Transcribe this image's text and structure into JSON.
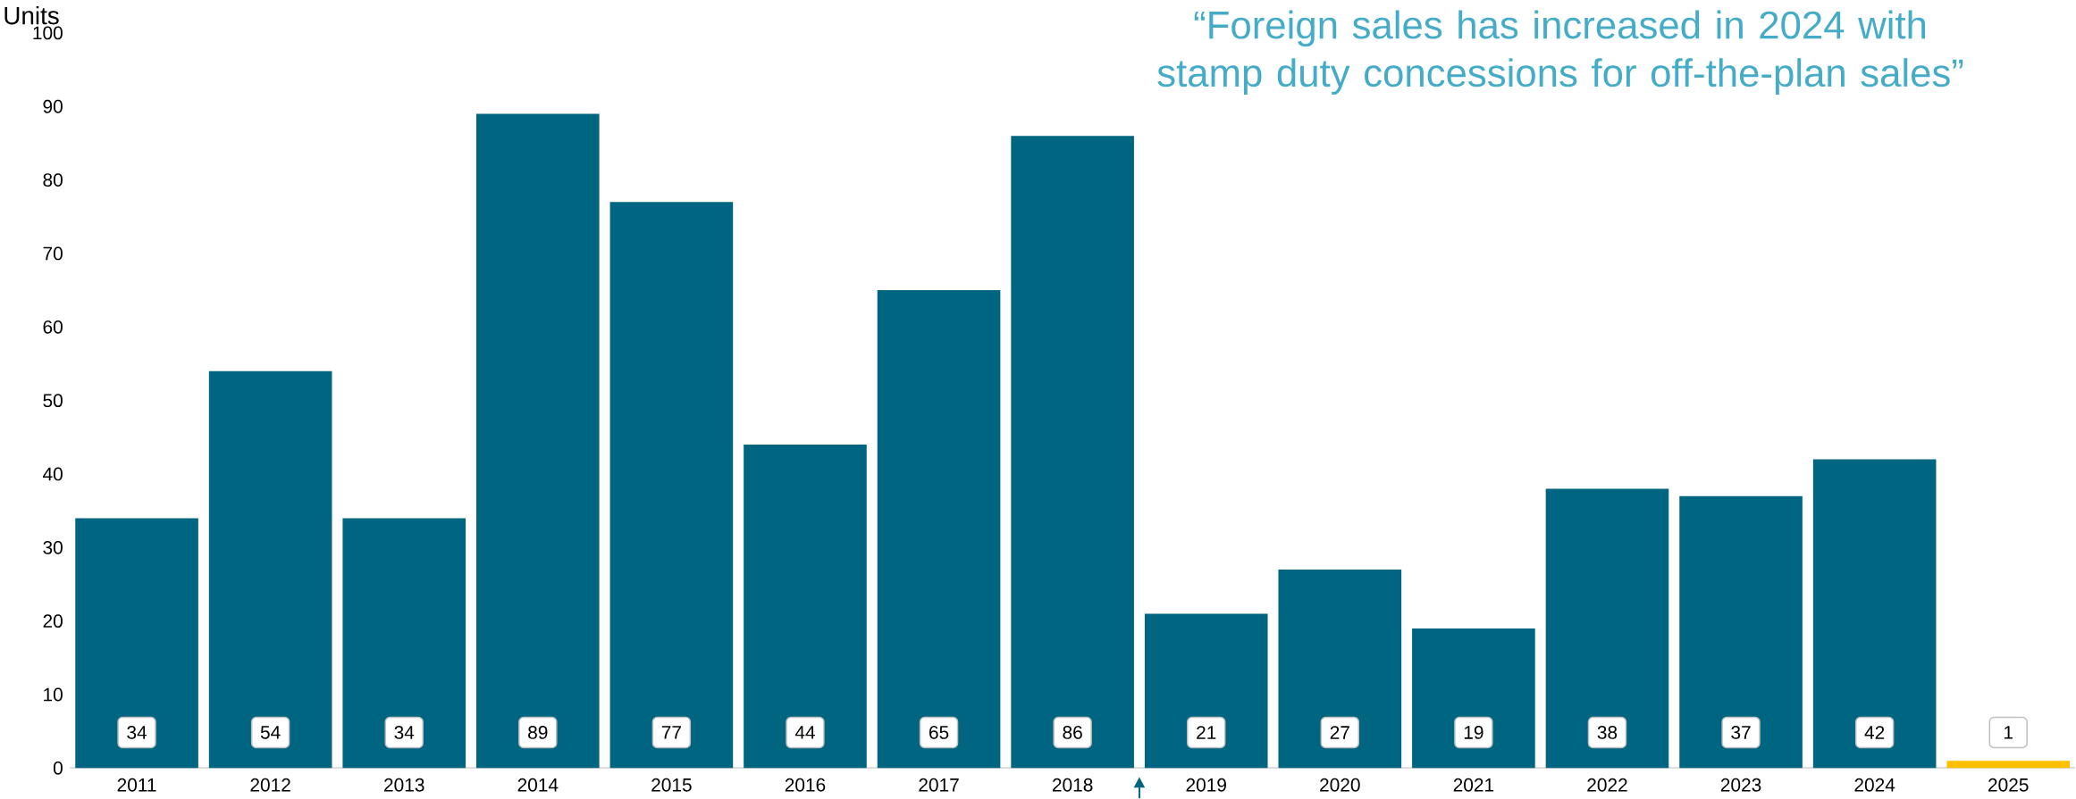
{
  "chart_data": {
    "type": "bar",
    "title": "“Foreign sales has increased in 2024 with stamp duty concessions for off-the-plan sales”",
    "ylabel": "Units",
    "categories": [
      "2011",
      "2012",
      "2013",
      "2014",
      "2015",
      "2016",
      "2017",
      "2018",
      "2019",
      "2020",
      "2021",
      "2022",
      "2023",
      "2024",
      "2025"
    ],
    "values": [
      34,
      54,
      34,
      89,
      77,
      44,
      65,
      86,
      21,
      27,
      19,
      38,
      37,
      42,
      1
    ],
    "colors": [
      "#006580",
      "#006580",
      "#006580",
      "#006580",
      "#006580",
      "#006580",
      "#006580",
      "#006580",
      "#006580",
      "#006580",
      "#006580",
      "#006580",
      "#006580",
      "#006580",
      "#ffc000"
    ],
    "ylim": [
      0,
      100
    ],
    "yticks": [
      0,
      10,
      20,
      30,
      40,
      50,
      60,
      70,
      80,
      90,
      100
    ],
    "data_labels": true
  }
}
